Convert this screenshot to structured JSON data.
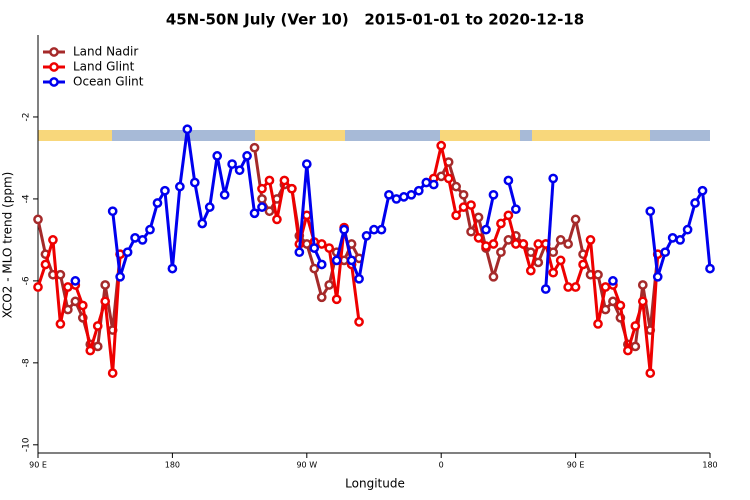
{
  "chart_data": {
    "type": "line",
    "title": "45N-50N July (Ver 10)   2015-01-01 to 2020-12-18",
    "xlabel": "Longitude",
    "ylabel": "XCO2 - MLO trend (ppm)",
    "x": [
      90,
      95,
      100,
      105,
      110,
      115,
      120,
      125,
      130,
      135,
      140,
      145,
      150,
      155,
      160,
      165,
      170,
      175,
      180,
      185,
      190,
      195,
      200,
      205,
      210,
      215,
      220,
      225,
      230,
      235,
      240,
      245,
      250,
      255,
      260,
      265,
      270,
      275,
      280,
      285,
      290,
      295,
      300,
      305,
      310,
      315,
      320,
      325,
      330,
      335,
      340,
      345,
      350,
      355,
      360,
      365,
      370,
      375,
      380,
      385,
      390,
      395,
      400,
      405,
      410,
      415,
      420,
      425,
      430,
      435,
      440,
      445,
      450,
      455,
      460,
      465,
      470,
      475,
      480,
      485,
      490,
      495,
      500,
      505,
      510,
      515,
      520,
      525,
      530,
      535,
      540
    ],
    "series": [
      {
        "name": "Land Nadir",
        "color": "#a52a2a",
        "values": [
          -4.5,
          -5.35,
          -5.85,
          -5.85,
          -6.7,
          -6.5,
          -6.9,
          -7.55,
          -7.6,
          -6.1,
          -7.2,
          -5.35,
          null,
          null,
          null,
          null,
          null,
          null,
          null,
          null,
          null,
          null,
          null,
          null,
          null,
          null,
          null,
          null,
          null,
          -2.75,
          -4.0,
          -4.3,
          -4.0,
          -3.65,
          -3.75,
          -4.9,
          -5.1,
          -5.7,
          -6.4,
          -6.1,
          -5.3,
          -5.5,
          -5.1,
          -5.45,
          null,
          null,
          null,
          null,
          null,
          null,
          null,
          null,
          null,
          null,
          -3.45,
          -3.1,
          -3.7,
          -3.9,
          -4.8,
          -4.45,
          -5.2,
          -5.9,
          -5.3,
          -5.0,
          -4.9,
          -5.1,
          -5.3,
          -5.55,
          -5.1,
          -5.3,
          -5.0,
          -5.1,
          -4.5,
          -5.35,
          -5.85,
          -5.85,
          -6.7,
          -6.5,
          -6.9,
          -7.55,
          -7.6,
          -6.1,
          -7.2,
          -5.35,
          null,
          null,
          null,
          null,
          null,
          null,
          null
        ]
      },
      {
        "name": "Land Glint",
        "color": "#ee0000",
        "values": [
          -6.15,
          -5.6,
          -5.0,
          -7.05,
          -6.15,
          -6.1,
          -6.6,
          -7.7,
          -7.1,
          -6.5,
          -8.25,
          -5.35,
          null,
          null,
          null,
          null,
          null,
          null,
          null,
          null,
          null,
          null,
          null,
          null,
          null,
          null,
          null,
          null,
          null,
          null,
          -3.75,
          -3.55,
          -4.5,
          -3.55,
          -3.75,
          -5.1,
          -4.4,
          -5.05,
          -5.1,
          -5.2,
          -6.45,
          -4.7,
          -5.6,
          -7.0,
          null,
          null,
          null,
          null,
          null,
          null,
          null,
          null,
          null,
          -3.5,
          -2.7,
          -3.5,
          -4.4,
          -4.2,
          -4.15,
          -4.95,
          -5.15,
          -5.1,
          -4.6,
          -4.4,
          -5.1,
          -5.1,
          -5.75,
          -5.1,
          -5.1,
          -5.8,
          -5.5,
          -6.15,
          -6.15,
          -5.6,
          -5.0,
          -7.05,
          -6.15,
          -6.1,
          -6.6,
          -7.7,
          -7.1,
          -6.5,
          -8.25,
          -5.35,
          null,
          null,
          null,
          null,
          null,
          null,
          null
        ]
      },
      {
        "name": "Ocean Glint",
        "color": "#0000ee",
        "values": [
          null,
          null,
          null,
          null,
          null,
          -6.0,
          null,
          null,
          null,
          null,
          -4.3,
          -5.9,
          -5.3,
          -4.95,
          -5.0,
          -4.75,
          -4.1,
          -3.8,
          -5.7,
          -3.7,
          -2.3,
          -3.6,
          -4.6,
          -4.2,
          -2.95,
          -3.9,
          -3.15,
          -3.3,
          -2.95,
          -4.35,
          -4.2,
          null,
          null,
          null,
          null,
          -5.3,
          -3.15,
          -5.2,
          -5.6,
          null,
          -5.5,
          -4.75,
          -5.5,
          -5.95,
          -4.9,
          -4.75,
          -4.75,
          -3.9,
          -4.0,
          -3.95,
          -3.9,
          -3.8,
          -3.6,
          -3.65,
          null,
          null,
          null,
          null,
          null,
          null,
          -4.75,
          -3.9,
          null,
          -3.55,
          -4.25,
          null,
          null,
          null,
          -6.2,
          -3.5,
          null,
          null,
          null,
          null,
          null,
          null,
          null,
          -6.0,
          null,
          null,
          null,
          null,
          -4.3,
          -5.9,
          -5.3,
          -4.95,
          -5.0,
          -4.75,
          -4.1,
          -3.8,
          -5.7
        ]
      }
    ],
    "xlim": [
      90,
      540
    ],
    "ylim": [
      -10.2,
      0
    ],
    "xticks": [
      {
        "value": 90,
        "label": "90 E"
      },
      180,
      {
        "value": 270,
        "label": "90 W"
      },
      {
        "value": 360,
        "label": "0"
      },
      {
        "value": 450,
        "label": "90 E"
      },
      {
        "value": 540,
        "label": "180"
      }
    ],
    "yticks": [
      -10,
      -8,
      -6,
      -4,
      -2
    ],
    "legend": "upper left"
  }
}
